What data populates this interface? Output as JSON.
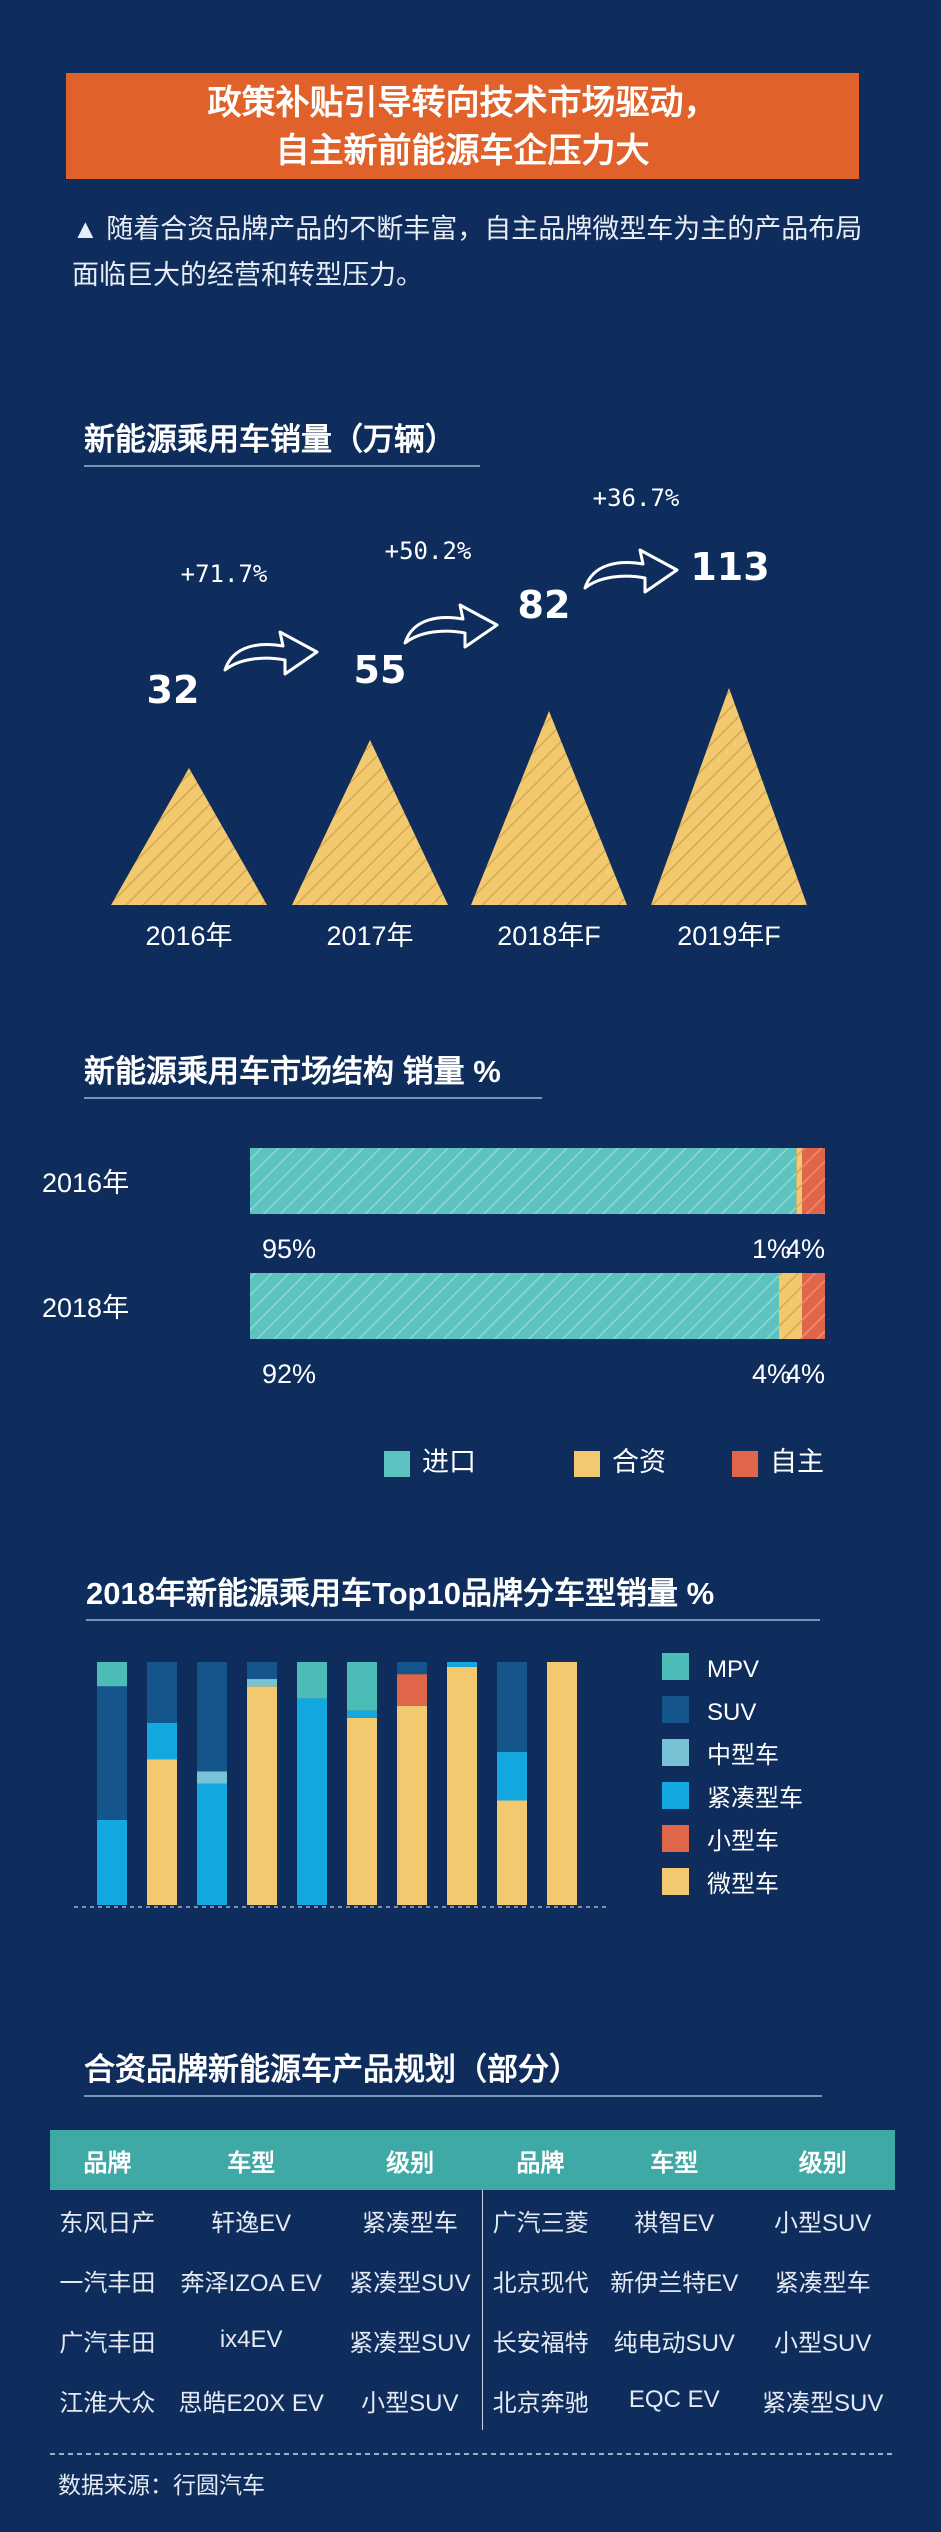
{
  "banner": {
    "line1": "政策补贴引导转向技术市场驱动，",
    "line2": "自主新前能源车企压力大"
  },
  "intro": "▲ 随着合资品牌产品的不断丰富，自主品牌微型车为主的产品布局面临巨大的经营和转型压力。",
  "colors": {
    "background": "#0f2d5c",
    "banner": "#e0622a",
    "import": "#5cc3c0",
    "jv": "#f2c96e",
    "domestic": "#e0664a",
    "mpv": "#4bbcb6",
    "suv": "#14558c",
    "midsize": "#77c2d4",
    "compact": "#14a8e0",
    "small": "#e0664a",
    "mini": "#f2c96e",
    "table_header": "#3fa9a5"
  },
  "chart_data": [
    {
      "type": "bar",
      "title": "新能源乘用车销量（万辆）",
      "categories": [
        "2016年",
        "2017年",
        "2018年F",
        "2019年F"
      ],
      "values": [
        32,
        55,
        82,
        113
      ],
      "value_labels": [
        "32",
        "55",
        "82",
        "113"
      ],
      "growth_labels": [
        "+71.7%",
        "+50.2%",
        "+36.7%"
      ]
    },
    {
      "type": "bar",
      "title": "新能源乘用车市场结构 销量 %",
      "categories": [
        "2016年",
        "2018年"
      ],
      "series": [
        {
          "name": "进口",
          "values": [
            95,
            92
          ],
          "labels": [
            "95%",
            "92%"
          ]
        },
        {
          "name": "合资",
          "values": [
            1,
            4
          ],
          "labels": [
            "1%",
            "4%"
          ]
        },
        {
          "name": "自主",
          "values": [
            4,
            4
          ],
          "labels": [
            "4%",
            "4%"
          ]
        }
      ]
    },
    {
      "type": "bar",
      "title": "2018年新能源乘用车Top10品牌分车型销量 %",
      "series": [
        {
          "name": "MPV",
          "values": [
            10,
            0,
            0,
            0,
            15,
            20,
            0,
            0,
            0,
            0
          ]
        },
        {
          "name": "SUV",
          "values": [
            55,
            25,
            45,
            7,
            0,
            0,
            5,
            0,
            37,
            0
          ]
        },
        {
          "name": "中型车",
          "values": [
            0,
            0,
            5,
            3,
            0,
            0,
            0,
            0,
            0,
            0
          ]
        },
        {
          "name": "紧凑型车",
          "values": [
            35,
            15,
            50,
            0,
            85,
            3,
            0,
            2,
            20,
            0
          ]
        },
        {
          "name": "小型车",
          "values": [
            0,
            0,
            0,
            0,
            0,
            0,
            13,
            0,
            0,
            0
          ]
        },
        {
          "name": "微型车",
          "values": [
            0,
            60,
            0,
            90,
            0,
            77,
            82,
            98,
            43,
            100
          ]
        }
      ]
    }
  ],
  "table": {
    "title": "合资品牌新能源车产品规划（部分）",
    "headers": [
      "品牌",
      "车型",
      "级别",
      "品牌",
      "车型",
      "级别"
    ],
    "rows": [
      [
        "东风日产",
        "轩逸EV",
        "紧凑型车",
        "广汽三菱",
        "祺智EV",
        "小型SUV"
      ],
      [
        "一汽丰田",
        "奔泽IZOA EV",
        "紧凑型SUV",
        "北京现代",
        "新伊兰特EV",
        "紧凑型车"
      ],
      [
        "广汽丰田",
        "ix4EV",
        "紧凑型SUV",
        "长安福特",
        "纯电动SUV",
        "小型SUV"
      ],
      [
        "江淮大众",
        "思皓E20X EV",
        "小型SUV",
        "北京奔驰",
        "EQC EV",
        "紧凑型SUV"
      ]
    ]
  },
  "source": "数据来源：行圆汽车"
}
